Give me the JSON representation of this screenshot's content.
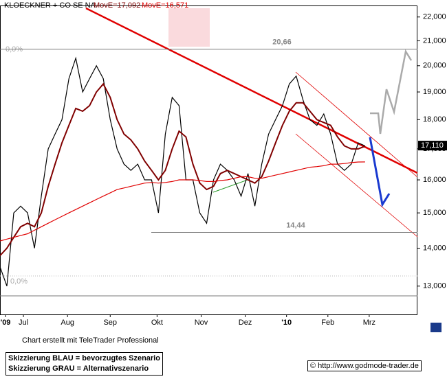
{
  "chart_data": {
    "type": "line",
    "title": "KLOECKNER + CO SE NA",
    "x": [
      0,
      5,
      10,
      15,
      20,
      25,
      30,
      35,
      40,
      45,
      50,
      55,
      60,
      65,
      70,
      75,
      80,
      85,
      90,
      95,
      100,
      105,
      110,
      115,
      120,
      125,
      130,
      135,
      140,
      145,
      150,
      155,
      160,
      165,
      170,
      175,
      180,
      185,
      190,
      195,
      200,
      205,
      210,
      215,
      220,
      225,
      230,
      235,
      240,
      245,
      250,
      255,
      260,
      265
    ],
    "series": [
      {
        "color": "#000000",
        "values": [
          13.5,
          13.0,
          15.0,
          15.2,
          15.0,
          14.0,
          15.5,
          17.0,
          17.5,
          18.0,
          19.5,
          20.3,
          19.0,
          19.5,
          20.0,
          19.5,
          18.0,
          17.0,
          16.5,
          16.3,
          16.5,
          16.0,
          16.0,
          15.0,
          17.5,
          18.8,
          18.5,
          16.0,
          16.0,
          15.0,
          14.7,
          16.0,
          16.5,
          16.3,
          16.0,
          15.5,
          16.2,
          15.2,
          16.5,
          17.5,
          18.0,
          18.5,
          19.3,
          19.6,
          18.7,
          18.0,
          17.8,
          18.2,
          17.5,
          16.5,
          16.3,
          16.5,
          17.2,
          17.1
        ]
      },
      {
        "name": "MovE=17,092",
        "color": "#800000",
        "values": [
          13.8,
          14.0,
          14.3,
          14.6,
          14.7,
          14.6,
          15.0,
          15.8,
          16.5,
          17.2,
          17.8,
          18.4,
          18.3,
          18.5,
          19.0,
          19.3,
          18.8,
          18.0,
          17.5,
          17.3,
          17.0,
          16.6,
          16.3,
          16.0,
          16.3,
          17.0,
          17.6,
          17.4,
          16.5,
          15.9,
          15.7,
          15.8,
          16.2,
          16.3,
          16.2,
          16.1,
          16.0,
          15.9,
          16.1,
          16.6,
          17.2,
          17.8,
          18.3,
          18.6,
          18.6,
          18.3,
          18.0,
          17.9,
          17.8,
          17.4,
          17.1,
          17.0,
          17.0,
          17.09
        ]
      },
      {
        "name": "MovE=16,571",
        "color": "#e00000",
        "values": [
          14.2,
          14.25,
          14.3,
          14.35,
          14.4,
          14.5,
          14.6,
          14.7,
          14.8,
          14.9,
          15.0,
          15.1,
          15.2,
          15.3,
          15.4,
          15.5,
          15.6,
          15.7,
          15.75,
          15.8,
          15.85,
          15.9,
          15.92,
          15.9,
          15.92,
          15.95,
          16.0,
          16.0,
          16.0,
          15.98,
          15.95,
          15.95,
          15.98,
          16.0,
          16.05,
          16.1,
          16.1,
          16.05,
          16.05,
          16.1,
          16.15,
          16.2,
          16.25,
          16.3,
          16.35,
          16.4,
          16.42,
          16.45,
          16.5,
          16.5,
          16.52,
          16.55,
          16.57,
          16.571
        ]
      }
    ],
    "xlim": [
      0,
      303
    ],
    "xticks": [
      {
        "value": 4,
        "label": "'09"
      },
      {
        "value": 17,
        "label": "Jul"
      },
      {
        "value": 49,
        "label": "Aug"
      },
      {
        "value": 80,
        "label": "Sep"
      },
      {
        "value": 114,
        "label": "Okt"
      },
      {
        "value": 146,
        "label": "Nov"
      },
      {
        "value": 178,
        "label": "Dez"
      },
      {
        "value": 208,
        "label": "'10"
      },
      {
        "value": 238,
        "label": "Feb"
      },
      {
        "value": 268,
        "label": "Mrz"
      }
    ],
    "ylim": [
      12.3,
      22.5
    ],
    "log_scale": true,
    "yticks": [
      {
        "value": 13,
        "label": "13,000"
      },
      {
        "value": 14,
        "label": "14,000"
      },
      {
        "value": 15,
        "label": "15,000"
      },
      {
        "value": 16,
        "label": "16,000"
      },
      {
        "value": 17,
        "label": "17,000"
      },
      {
        "value": 18,
        "label": "18,000"
      },
      {
        "value": 19,
        "label": "19,000"
      },
      {
        "value": 20,
        "label": "20,000"
      },
      {
        "value": 21,
        "label": "21,000"
      },
      {
        "value": 22,
        "label": "22,000"
      }
    ],
    "last_price": {
      "value": 17.11,
      "label": "17,110"
    },
    "levels": [
      {
        "value": 20.66,
        "label": "20,66"
      },
      {
        "value": 14.44,
        "label": "14,44"
      }
    ],
    "fib_labels": [
      "0,0%",
      "0,0%"
    ],
    "credit": "Chart erstellt mit TeleTrader Professional",
    "legend_notes": [
      "Skizzierung BLAU = bevorzugtes Szenario",
      "Skizzierung GRAU = Alternativszenario"
    ],
    "source": "© http://www.godmode-trader.de"
  }
}
